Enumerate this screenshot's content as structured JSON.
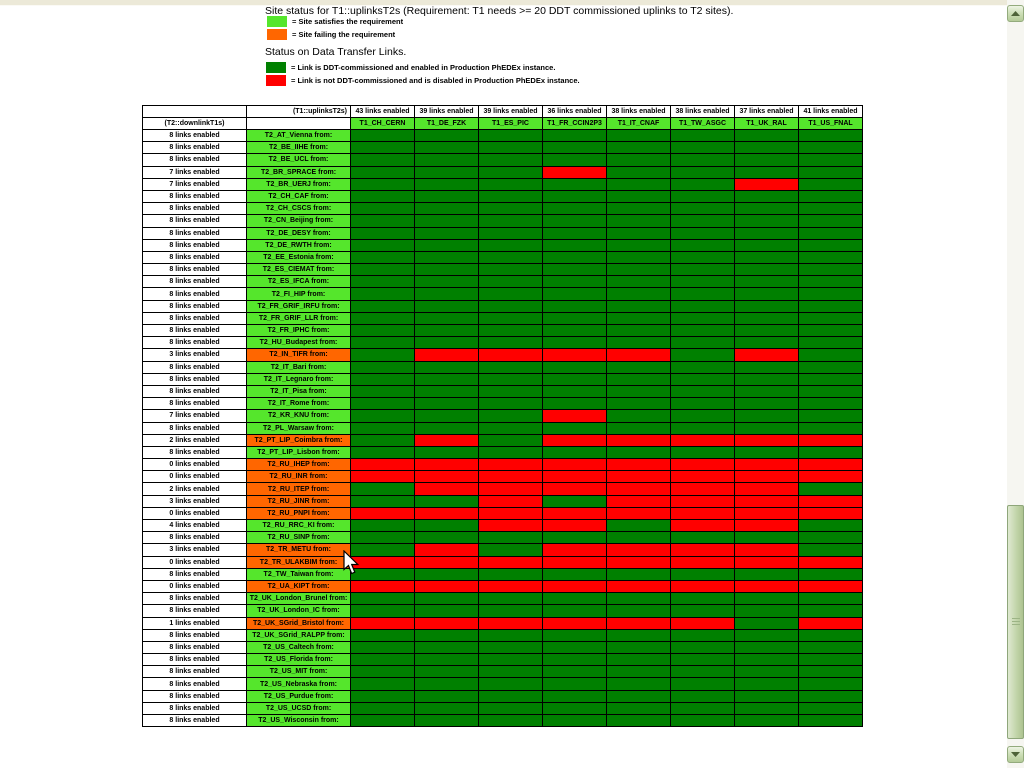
{
  "page": {
    "title": "Site status for T1::uplinksT2s (Requirement: T1 needs >= 20 DDT commissioned uplinks to T2 sites).",
    "section2_title": "Status on Data Transfer Links.",
    "site_legend": [
      {
        "label": "= Site satisfies the requirement",
        "color_key": "site_ok"
      },
      {
        "label": "= Site failing the requirement",
        "color_key": "site_fail"
      }
    ],
    "link_legend": [
      {
        "label": "= Link is DDT-commissioned and enabled in Production PhEDEx instance.",
        "color_key": "link_ok"
      },
      {
        "label": "= Link is not DDT-commissioned and is disabled in Production PhEDEx instance.",
        "color_key": "link_fail"
      }
    ]
  },
  "colors": {
    "site_ok": "#55e62c",
    "site_fail": "#ff6600",
    "link_ok": "#008000",
    "link_fail": "#ff0000"
  },
  "icons": {
    "scroll_up": "chevron-up",
    "scroll_down": "chevron-down",
    "mouse": "arrow-pointer"
  },
  "table": {
    "corner_top": "(T1::uplinksT2s)",
    "corner_left": "(T2::downlinkT1s)",
    "columns": [
      {
        "count": "43 links enabled",
        "name": "T1_CH_CERN"
      },
      {
        "count": "39 links enabled",
        "name": "T1_DE_FZK"
      },
      {
        "count": "39 links enabled",
        "name": "T1_ES_PIC"
      },
      {
        "count": "36 links enabled",
        "name": "T1_FR_CCIN2P3"
      },
      {
        "count": "38 links enabled",
        "name": "T1_IT_CNAF"
      },
      {
        "count": "38 links enabled",
        "name": "T1_TW_ASGC"
      },
      {
        "count": "37 links enabled",
        "name": "T1_UK_RAL"
      },
      {
        "count": "41 links enabled",
        "name": "T1_US_FNAL"
      }
    ],
    "rows": [
      {
        "links": "8 links enabled",
        "site": "T2_AT_Vienna from:",
        "ok": true,
        "cells": [
          1,
          1,
          1,
          1,
          1,
          1,
          1,
          1
        ]
      },
      {
        "links": "8 links enabled",
        "site": "T2_BE_IIHE from:",
        "ok": true,
        "cells": [
          1,
          1,
          1,
          1,
          1,
          1,
          1,
          1
        ]
      },
      {
        "links": "8 links enabled",
        "site": "T2_BE_UCL from:",
        "ok": true,
        "cells": [
          1,
          1,
          1,
          1,
          1,
          1,
          1,
          1
        ]
      },
      {
        "links": "7 links enabled",
        "site": "T2_BR_SPRACE from:",
        "ok": true,
        "cells": [
          1,
          1,
          1,
          0,
          1,
          1,
          1,
          1
        ]
      },
      {
        "links": "7 links enabled",
        "site": "T2_BR_UERJ from:",
        "ok": true,
        "cells": [
          1,
          1,
          1,
          1,
          1,
          1,
          0,
          1
        ]
      },
      {
        "links": "8 links enabled",
        "site": "T2_CH_CAF from:",
        "ok": true,
        "cells": [
          1,
          1,
          1,
          1,
          1,
          1,
          1,
          1
        ]
      },
      {
        "links": "8 links enabled",
        "site": "T2_CH_CSCS from:",
        "ok": true,
        "cells": [
          1,
          1,
          1,
          1,
          1,
          1,
          1,
          1
        ]
      },
      {
        "links": "8 links enabled",
        "site": "T2_CN_Beijing from:",
        "ok": true,
        "cells": [
          1,
          1,
          1,
          1,
          1,
          1,
          1,
          1
        ]
      },
      {
        "links": "8 links enabled",
        "site": "T2_DE_DESY from:",
        "ok": true,
        "cells": [
          1,
          1,
          1,
          1,
          1,
          1,
          1,
          1
        ]
      },
      {
        "links": "8 links enabled",
        "site": "T2_DE_RWTH from:",
        "ok": true,
        "cells": [
          1,
          1,
          1,
          1,
          1,
          1,
          1,
          1
        ]
      },
      {
        "links": "8 links enabled",
        "site": "T2_EE_Estonia from:",
        "ok": true,
        "cells": [
          1,
          1,
          1,
          1,
          1,
          1,
          1,
          1
        ]
      },
      {
        "links": "8 links enabled",
        "site": "T2_ES_CIEMAT from:",
        "ok": true,
        "cells": [
          1,
          1,
          1,
          1,
          1,
          1,
          1,
          1
        ]
      },
      {
        "links": "8 links enabled",
        "site": "T2_ES_IFCA from:",
        "ok": true,
        "cells": [
          1,
          1,
          1,
          1,
          1,
          1,
          1,
          1
        ]
      },
      {
        "links": "8 links enabled",
        "site": "T2_FI_HIP from:",
        "ok": true,
        "cells": [
          1,
          1,
          1,
          1,
          1,
          1,
          1,
          1
        ]
      },
      {
        "links": "8 links enabled",
        "site": "T2_FR_GRIF_IRFU from:",
        "ok": true,
        "cells": [
          1,
          1,
          1,
          1,
          1,
          1,
          1,
          1
        ]
      },
      {
        "links": "8 links enabled",
        "site": "T2_FR_GRIF_LLR from:",
        "ok": true,
        "cells": [
          1,
          1,
          1,
          1,
          1,
          1,
          1,
          1
        ]
      },
      {
        "links": "8 links enabled",
        "site": "T2_FR_IPHC from:",
        "ok": true,
        "cells": [
          1,
          1,
          1,
          1,
          1,
          1,
          1,
          1
        ]
      },
      {
        "links": "8 links enabled",
        "site": "T2_HU_Budapest from:",
        "ok": true,
        "cells": [
          1,
          1,
          1,
          1,
          1,
          1,
          1,
          1
        ]
      },
      {
        "links": "3 links enabled",
        "site": "T2_IN_TIFR from:",
        "ok": false,
        "cells": [
          1,
          0,
          0,
          0,
          0,
          1,
          0,
          1
        ]
      },
      {
        "links": "8 links enabled",
        "site": "T2_IT_Bari from:",
        "ok": true,
        "cells": [
          1,
          1,
          1,
          1,
          1,
          1,
          1,
          1
        ]
      },
      {
        "links": "8 links enabled",
        "site": "T2_IT_Legnaro from:",
        "ok": true,
        "cells": [
          1,
          1,
          1,
          1,
          1,
          1,
          1,
          1
        ]
      },
      {
        "links": "8 links enabled",
        "site": "T2_IT_Pisa from:",
        "ok": true,
        "cells": [
          1,
          1,
          1,
          1,
          1,
          1,
          1,
          1
        ]
      },
      {
        "links": "8 links enabled",
        "site": "T2_IT_Rome from:",
        "ok": true,
        "cells": [
          1,
          1,
          1,
          1,
          1,
          1,
          1,
          1
        ]
      },
      {
        "links": "7 links enabled",
        "site": "T2_KR_KNU from:",
        "ok": true,
        "cells": [
          1,
          1,
          1,
          0,
          1,
          1,
          1,
          1
        ]
      },
      {
        "links": "8 links enabled",
        "site": "T2_PL_Warsaw from:",
        "ok": true,
        "cells": [
          1,
          1,
          1,
          1,
          1,
          1,
          1,
          1
        ]
      },
      {
        "links": "2 links enabled",
        "site": "T2_PT_LIP_Coimbra from:",
        "ok": false,
        "cells": [
          1,
          0,
          1,
          0,
          0,
          0,
          0,
          0
        ]
      },
      {
        "links": "8 links enabled",
        "site": "T2_PT_LIP_Lisbon from:",
        "ok": true,
        "cells": [
          1,
          1,
          1,
          1,
          1,
          1,
          1,
          1
        ]
      },
      {
        "links": "0 links enabled",
        "site": "T2_RU_IHEP from:",
        "ok": false,
        "cells": [
          0,
          0,
          0,
          0,
          0,
          0,
          0,
          0
        ]
      },
      {
        "links": "0 links enabled",
        "site": "T2_RU_INR from:",
        "ok": false,
        "cells": [
          0,
          0,
          0,
          0,
          0,
          0,
          0,
          0
        ]
      },
      {
        "links": "2 links enabled",
        "site": "T2_RU_ITEP from:",
        "ok": false,
        "cells": [
          1,
          0,
          0,
          0,
          0,
          0,
          0,
          1
        ]
      },
      {
        "links": "3 links enabled",
        "site": "T2_RU_JINR from:",
        "ok": false,
        "cells": [
          1,
          1,
          0,
          1,
          0,
          0,
          0,
          0
        ]
      },
      {
        "links": "0 links enabled",
        "site": "T2_RU_PNPI from:",
        "ok": false,
        "cells": [
          0,
          0,
          0,
          0,
          0,
          0,
          0,
          0
        ]
      },
      {
        "links": "4 links enabled",
        "site": "T2_RU_RRC_KI from:",
        "ok": true,
        "cells": [
          1,
          1,
          0,
          0,
          1,
          0,
          0,
          1
        ]
      },
      {
        "links": "8 links enabled",
        "site": "T2_RU_SINP from:",
        "ok": true,
        "cells": [
          1,
          1,
          1,
          1,
          1,
          1,
          1,
          1
        ]
      },
      {
        "links": "3 links enabled",
        "site": "T2_TR_METU from:",
        "ok": false,
        "cells": [
          1,
          0,
          1,
          0,
          0,
          0,
          0,
          1
        ]
      },
      {
        "links": "0 links enabled",
        "site": "T2_TR_ULAKBIM from:",
        "ok": false,
        "cells": [
          0,
          0,
          0,
          0,
          0,
          0,
          0,
          0
        ]
      },
      {
        "links": "8 links enabled",
        "site": "T2_TW_Taiwan from:",
        "ok": true,
        "cells": [
          1,
          1,
          1,
          1,
          1,
          1,
          1,
          1
        ]
      },
      {
        "links": "0 links enabled",
        "site": "T2_UA_KIPT from:",
        "ok": false,
        "cells": [
          0,
          0,
          0,
          0,
          0,
          0,
          0,
          0
        ]
      },
      {
        "links": "8 links enabled",
        "site": "T2_UK_London_Brunel from:",
        "ok": true,
        "cells": [
          1,
          1,
          1,
          1,
          1,
          1,
          1,
          1
        ]
      },
      {
        "links": "8 links enabled",
        "site": "T2_UK_London_IC from:",
        "ok": true,
        "cells": [
          1,
          1,
          1,
          1,
          1,
          1,
          1,
          1
        ]
      },
      {
        "links": "1 links enabled",
        "site": "T2_UK_SGrid_Bristol from:",
        "ok": false,
        "cells": [
          0,
          0,
          0,
          0,
          0,
          0,
          1,
          0
        ]
      },
      {
        "links": "8 links enabled",
        "site": "T2_UK_SGrid_RALPP from:",
        "ok": true,
        "cells": [
          1,
          1,
          1,
          1,
          1,
          1,
          1,
          1
        ]
      },
      {
        "links": "8 links enabled",
        "site": "T2_US_Caltech from:",
        "ok": true,
        "cells": [
          1,
          1,
          1,
          1,
          1,
          1,
          1,
          1
        ]
      },
      {
        "links": "8 links enabled",
        "site": "T2_US_Florida from:",
        "ok": true,
        "cells": [
          1,
          1,
          1,
          1,
          1,
          1,
          1,
          1
        ]
      },
      {
        "links": "8 links enabled",
        "site": "T2_US_MIT from:",
        "ok": true,
        "cells": [
          1,
          1,
          1,
          1,
          1,
          1,
          1,
          1
        ]
      },
      {
        "links": "8 links enabled",
        "site": "T2_US_Nebraska from:",
        "ok": true,
        "cells": [
          1,
          1,
          1,
          1,
          1,
          1,
          1,
          1
        ]
      },
      {
        "links": "8 links enabled",
        "site": "T2_US_Purdue from:",
        "ok": true,
        "cells": [
          1,
          1,
          1,
          1,
          1,
          1,
          1,
          1
        ]
      },
      {
        "links": "8 links enabled",
        "site": "T2_US_UCSD from:",
        "ok": true,
        "cells": [
          1,
          1,
          1,
          1,
          1,
          1,
          1,
          1
        ]
      },
      {
        "links": "8 links enabled",
        "site": "T2_US_Wisconsin from:",
        "ok": true,
        "cells": [
          1,
          1,
          1,
          1,
          1,
          1,
          1,
          1
        ]
      }
    ]
  }
}
